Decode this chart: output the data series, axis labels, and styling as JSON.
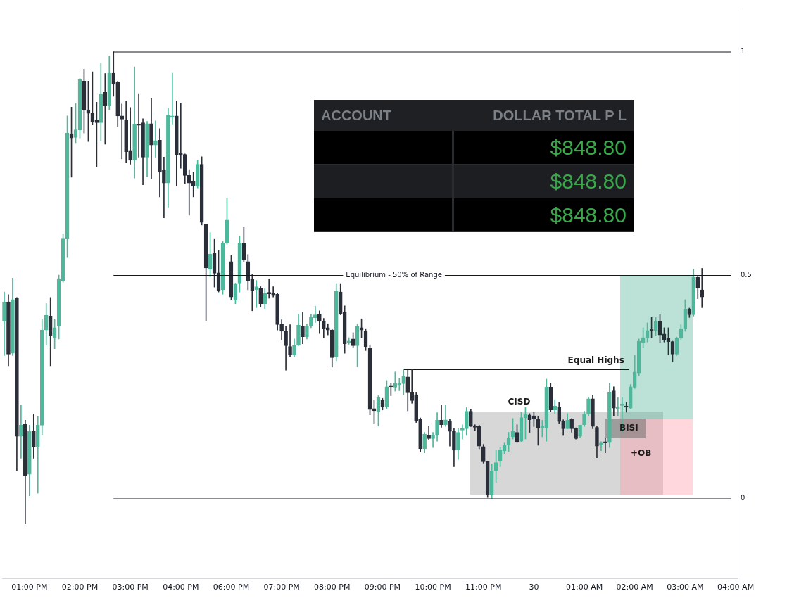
{
  "chart_data": {
    "type": "candlestick",
    "categories": [
      null,
      null,
      null,
      null,
      null,
      null,
      "01:00 PM",
      null,
      null,
      null,
      null,
      null,
      null,
      null,
      null,
      null,
      null,
      null,
      "02:00 PM",
      null,
      null,
      null,
      null,
      null,
      null,
      null,
      null,
      null,
      null,
      null,
      "03:00 PM",
      null,
      null,
      null,
      null,
      null,
      null,
      null,
      null,
      null,
      null,
      null,
      "04:00 PM",
      null,
      null,
      null,
      null,
      null,
      null,
      null,
      null,
      null,
      null,
      null,
      "06:00 PM",
      null,
      null,
      null,
      null,
      null,
      null,
      null,
      null,
      null,
      null,
      null,
      "07:00 PM",
      null,
      null,
      null,
      null,
      null,
      null,
      null,
      null,
      null,
      null,
      null,
      "08:00 PM",
      null,
      null,
      null,
      null,
      null,
      null,
      null,
      null,
      null,
      null,
      null,
      "09:00 PM",
      null,
      null,
      null,
      null,
      null,
      null,
      null,
      null,
      null,
      null,
      null,
      "10:00 PM",
      null,
      null,
      null,
      null,
      null,
      null,
      null,
      null,
      null,
      null,
      null,
      "11:00 PM",
      null,
      null,
      null,
      null,
      null,
      null,
      null,
      null,
      null,
      null,
      null,
      "30",
      null,
      null,
      null,
      null,
      null,
      null,
      null,
      null,
      null,
      null,
      null,
      "01:00 AM",
      null,
      null,
      null,
      null,
      null,
      null,
      null,
      null,
      null,
      null,
      null,
      "02:00 AM",
      null,
      null,
      null,
      null,
      null,
      null,
      null,
      null,
      null,
      null,
      null,
      "03:00 AM",
      null,
      null,
      null,
      null,
      null,
      null,
      null,
      null,
      null,
      null,
      null,
      "04:00 AM"
    ],
    "ohlc": [
      [
        0.396,
        0.462,
        0.32,
        0.44
      ],
      [
        0.44,
        0.456,
        0.297,
        0.323
      ],
      [
        0.325,
        0.493,
        0.32,
        0.445
      ],
      [
        0.448,
        0.45,
        0.062,
        0.139
      ],
      [
        0.139,
        0.209,
        0.09,
        0.164
      ],
      [
        0.167,
        0.175,
        -0.057,
        0.051
      ],
      [
        0.054,
        0.164,
        0.006,
        0.15
      ],
      [
        0.15,
        0.189,
        0.09,
        0.116
      ],
      [
        0.116,
        0.184,
        0.012,
        0.164
      ],
      [
        0.164,
        0.402,
        0.142,
        0.377
      ],
      [
        0.377,
        0.436,
        0.343,
        0.41
      ],
      [
        0.408,
        0.45,
        0.297,
        0.365
      ],
      [
        0.359,
        0.402,
        0.335,
        0.382
      ],
      [
        0.385,
        0.5,
        0.357,
        0.49
      ],
      [
        0.488,
        0.592,
        0.484,
        0.581
      ],
      [
        0.581,
        0.856,
        0.539,
        0.818
      ],
      [
        0.815,
        0.876,
        0.719,
        0.807
      ],
      [
        0.808,
        0.884,
        0.796,
        0.825
      ],
      [
        0.825,
        0.94,
        0.807,
        0.938
      ],
      [
        0.934,
        0.961,
        0.818,
        0.87
      ],
      [
        0.87,
        0.934,
        0.799,
        0.862
      ],
      [
        0.862,
        0.955,
        0.836,
        0.842
      ],
      [
        0.847,
        0.887,
        0.743,
        0.841
      ],
      [
        0.841,
        0.974,
        0.8,
        0.906
      ],
      [
        0.909,
        0.951,
        0.793,
        0.879
      ],
      [
        0.879,
        0.99,
        0.87,
        0.952
      ],
      [
        0.952,
        1.0,
        0.9,
        0.927
      ],
      [
        0.932,
        0.934,
        0.832,
        0.856
      ],
      [
        0.856,
        0.883,
        0.76,
        0.849
      ],
      [
        0.847,
        0.889,
        0.751,
        0.776
      ],
      [
        0.779,
        0.875,
        0.748,
        0.757
      ],
      [
        0.757,
        0.966,
        0.717,
        0.838
      ],
      [
        0.838,
        0.906,
        0.764,
        0.835
      ],
      [
        0.841,
        0.85,
        0.702,
        0.764
      ],
      [
        0.764,
        0.844,
        0.72,
        0.839
      ],
      [
        0.839,
        0.895,
        0.716,
        0.791
      ],
      [
        0.791,
        0.845,
        0.764,
        0.801
      ],
      [
        0.802,
        0.828,
        0.675,
        0.73
      ],
      [
        0.734,
        0.764,
        0.628,
        0.706
      ],
      [
        0.706,
        0.873,
        0.652,
        0.858
      ],
      [
        0.853,
        0.952,
        0.838,
        0.856
      ],
      [
        0.856,
        0.89,
        0.7,
        0.77
      ],
      [
        0.773,
        0.884,
        0.739,
        0.768
      ],
      [
        0.77,
        0.771,
        0.705,
        0.723
      ],
      [
        0.723,
        0.736,
        0.634,
        0.706
      ],
      [
        0.709,
        0.731,
        0.675,
        0.699
      ],
      [
        0.699,
        0.756,
        0.695,
        0.748
      ],
      [
        0.748,
        0.765,
        0.612,
        0.618
      ],
      [
        0.614,
        0.614,
        0.397,
        0.516
      ],
      [
        0.513,
        0.595,
        0.496,
        0.547
      ],
      [
        0.549,
        0.58,
        0.473,
        0.504
      ],
      [
        0.505,
        0.555,
        0.462,
        0.464
      ],
      [
        0.467,
        0.575,
        0.457,
        0.572
      ],
      [
        0.573,
        0.671,
        0.569,
        0.623
      ],
      [
        0.53,
        0.544,
        0.444,
        0.451
      ],
      [
        0.444,
        0.482,
        0.436,
        0.479
      ],
      [
        0.482,
        0.587,
        0.462,
        0.572
      ],
      [
        0.572,
        0.607,
        0.529,
        0.535
      ],
      [
        0.53,
        0.546,
        0.467,
        0.488
      ],
      [
        0.49,
        0.502,
        0.42,
        0.465
      ],
      [
        0.467,
        0.488,
        0.427,
        0.474
      ],
      [
        0.471,
        0.474,
        0.428,
        0.436
      ],
      [
        0.436,
        0.471,
        0.425,
        0.459
      ],
      [
        0.461,
        0.491,
        0.448,
        0.458
      ],
      [
        0.459,
        0.474,
        0.451,
        0.454
      ],
      [
        0.457,
        0.459,
        0.377,
        0.389
      ],
      [
        0.391,
        0.4,
        0.355,
        0.374
      ],
      [
        0.374,
        0.385,
        0.287,
        0.342
      ],
      [
        0.34,
        0.389,
        0.317,
        0.321
      ],
      [
        0.321,
        0.357,
        0.317,
        0.342
      ],
      [
        0.343,
        0.413,
        0.342,
        0.388
      ],
      [
        0.386,
        0.417,
        0.346,
        0.362
      ],
      [
        0.362,
        0.39,
        0.357,
        0.386
      ],
      [
        0.385,
        0.413,
        0.382,
        0.406
      ],
      [
        0.404,
        0.43,
        0.394,
        0.411
      ],
      [
        0.413,
        0.42,
        0.369,
        0.396
      ],
      [
        0.396,
        0.403,
        0.36,
        0.38
      ],
      [
        0.382,
        0.391,
        0.366,
        0.377
      ],
      [
        0.377,
        0.38,
        0.294,
        0.315
      ],
      [
        0.318,
        0.481,
        0.308,
        0.465
      ],
      [
        0.462,
        0.481,
        0.411,
        0.414
      ],
      [
        0.416,
        0.431,
        0.325,
        0.346
      ],
      [
        0.349,
        0.36,
        0.345,
        0.352
      ],
      [
        0.357,
        0.371,
        0.337,
        0.342
      ],
      [
        0.342,
        0.39,
        0.295,
        0.385
      ],
      [
        0.382,
        0.402,
        0.359,
        0.377
      ],
      [
        0.374,
        0.38,
        0.331,
        0.34
      ],
      [
        0.337,
        0.343,
        0.187,
        0.199
      ],
      [
        0.201,
        0.219,
        0.167,
        0.196
      ],
      [
        0.193,
        0.23,
        0.162,
        0.226
      ],
      [
        0.219,
        0.224,
        0.198,
        0.204
      ],
      [
        0.204,
        0.264,
        0.201,
        0.25
      ],
      [
        0.251,
        0.257,
        0.23,
        0.25
      ],
      [
        0.249,
        0.283,
        0.24,
        0.257
      ],
      [
        0.255,
        0.269,
        0.241,
        0.258
      ],
      [
        0.257,
        0.289,
        0.232,
        0.274
      ],
      [
        0.272,
        0.289,
        0.196,
        0.238
      ],
      [
        0.238,
        0.289,
        0.213,
        0.219
      ],
      [
        0.232,
        0.238,
        0.17,
        0.173
      ],
      [
        0.178,
        0.18,
        0.104,
        0.111
      ],
      [
        0.111,
        0.148,
        0.102,
        0.144
      ],
      [
        0.142,
        0.161,
        0.131,
        0.134
      ],
      [
        0.134,
        0.148,
        0.114,
        0.142
      ],
      [
        0.142,
        0.192,
        0.128,
        0.175
      ],
      [
        0.175,
        0.209,
        0.159,
        0.165
      ],
      [
        0.165,
        0.209,
        0.161,
        0.176
      ],
      [
        0.173,
        0.178,
        0.117,
        0.15
      ],
      [
        0.151,
        0.156,
        0.071,
        0.108
      ],
      [
        0.108,
        0.156,
        0.087,
        0.148
      ],
      [
        0.153,
        0.165,
        0.133,
        0.156
      ],
      [
        0.156,
        0.204,
        0.141,
        0.195
      ],
      [
        0.195,
        0.199,
        0.161,
        0.161
      ],
      [
        0.161,
        0.165,
        0.151,
        0.159
      ],
      [
        0.161,
        0.164,
        0.111,
        0.117
      ],
      [
        0.116,
        0.121,
        0.079,
        0.082
      ],
      [
        0.083,
        0.083,
        0.002,
        0.009
      ],
      [
        0.009,
        0.077,
        0.0,
        0.062
      ],
      [
        0.062,
        0.108,
        0.036,
        0.08
      ],
      [
        0.083,
        0.114,
        0.071,
        0.108
      ],
      [
        0.107,
        0.124,
        0.1,
        0.119
      ],
      [
        0.119,
        0.148,
        0.105,
        0.134
      ],
      [
        0.138,
        0.179,
        0.133,
        0.15
      ],
      [
        0.148,
        0.165,
        0.125,
        0.127
      ],
      [
        0.128,
        0.193,
        0.127,
        0.181
      ],
      [
        0.181,
        0.204,
        0.133,
        0.189
      ],
      [
        0.187,
        0.19,
        0.148,
        0.176
      ],
      [
        0.185,
        0.193,
        0.161,
        0.179
      ],
      [
        0.178,
        0.184,
        0.119,
        0.158
      ],
      [
        0.158,
        0.175,
        0.138,
        0.16
      ],
      [
        0.158,
        0.267,
        0.128,
        0.249
      ],
      [
        0.249,
        0.257,
        0.195,
        0.198
      ],
      [
        0.198,
        0.221,
        0.19,
        0.207
      ],
      [
        0.204,
        0.215,
        0.168,
        0.172
      ],
      [
        0.172,
        0.176,
        0.141,
        0.156
      ],
      [
        0.156,
        0.19,
        0.156,
        0.175
      ],
      [
        0.178,
        0.179,
        0.148,
        0.156
      ],
      [
        0.156,
        0.158,
        0.133,
        0.134
      ],
      [
        0.139,
        0.164,
        0.136,
        0.164
      ],
      [
        0.165,
        0.195,
        0.161,
        0.189
      ],
      [
        0.189,
        0.226,
        0.184,
        0.223
      ],
      [
        0.223,
        0.23,
        0.156,
        0.161
      ],
      [
        0.159,
        0.161,
        0.091,
        0.117
      ],
      [
        0.12,
        0.127,
        0.107,
        0.124
      ],
      [
        0.127,
        0.134,
        0.102,
        0.124
      ],
      [
        0.125,
        0.258,
        0.114,
        0.238
      ],
      [
        0.241,
        0.25,
        0.184,
        0.202
      ],
      [
        0.201,
        0.226,
        0.184,
        0.204
      ],
      [
        0.208,
        0.226,
        0.148,
        0.21
      ],
      [
        0.207,
        0.215,
        0.193,
        0.204
      ],
      [
        0.202,
        0.255,
        0.201,
        0.25
      ],
      [
        0.249,
        0.32,
        0.246,
        0.283
      ],
      [
        0.281,
        0.357,
        0.275,
        0.352
      ],
      [
        0.348,
        0.382,
        0.337,
        0.36
      ],
      [
        0.359,
        0.393,
        0.35,
        0.376
      ],
      [
        0.377,
        0.405,
        0.36,
        0.376
      ],
      [
        0.376,
        0.405,
        0.365,
        0.396
      ],
      [
        0.397,
        0.413,
        0.349,
        0.366
      ],
      [
        0.368,
        0.382,
        0.35,
        0.354
      ],
      [
        0.359,
        0.382,
        0.322,
        0.351
      ],
      [
        0.351,
        0.352,
        0.306,
        0.323
      ],
      [
        0.323,
        0.361,
        0.32,
        0.359
      ],
      [
        0.359,
        0.389,
        0.355,
        0.38
      ],
      [
        0.38,
        0.445,
        0.374,
        0.424
      ],
      [
        0.424,
        0.426,
        0.405,
        0.411
      ],
      [
        0.411,
        0.513,
        0.408,
        0.495
      ],
      [
        0.495,
        0.499,
        0.447,
        0.471
      ],
      [
        0.467,
        0.515,
        0.427,
        0.451
      ],
      null,
      null,
      null,
      null,
      null,
      null,
      null,
      null
    ],
    "colors": [
      "#4db89b",
      "#2a2e39",
      "#4db89b",
      "#2a2e39",
      "#4db89b",
      "#2a2e39",
      "#4db89b",
      "#2a2e39",
      "#4db89b",
      "#4db89b",
      "#4db89b",
      "#2a2e39",
      "#4db89b",
      "#4db89b",
      "#4db89b",
      "#4db89b",
      "#2a2e39",
      "#4db89b",
      "#4db89b",
      "#2a2e39",
      "#2a2e39",
      "#2a2e39",
      "#2a2e39",
      "#4db89b",
      "#2a2e39",
      "#4db89b",
      "#2a2e39",
      "#2a2e39",
      "#2a2e39",
      "#2a2e39",
      "#2a2e39",
      "#4db89b",
      "#2a2e39",
      "#2a2e39",
      "#4db89b",
      "#2a2e39",
      "#4db89b",
      "#2a2e39",
      "#2a2e39",
      "#4db89b",
      "#4db89b",
      "#2a2e39",
      "#2a2e39",
      "#2a2e39",
      "#2a2e39",
      "#2a2e39",
      "#4db89b",
      "#2a2e39",
      "#2a2e39",
      "#4db89b",
      "#2a2e39",
      "#2a2e39",
      "#4db89b",
      "#4db89b",
      "#2a2e39",
      "#4db89b",
      "#4db89b",
      "#2a2e39",
      "#2a2e39",
      "#2a2e39",
      "#4db89b",
      "#2a2e39",
      "#4db89b",
      "#2a2e39",
      "#2a2e39",
      "#2a2e39",
      "#2a2e39",
      "#2a2e39",
      "#2a2e39",
      "#4db89b",
      "#4db89b",
      "#2a2e39",
      "#4db89b",
      "#4db89b",
      "#4db89b",
      "#2a2e39",
      "#2a2e39",
      "#2a2e39",
      "#2a2e39",
      "#4db89b",
      "#2a2e39",
      "#2a2e39",
      "#4db89b",
      "#2a2e39",
      "#4db89b",
      "#2a2e39",
      "#2a2e39",
      "#2a2e39",
      "#2a2e39",
      "#4db89b",
      "#2a2e39",
      "#4db89b",
      "#2a2e39",
      "#4db89b",
      "#4db89b",
      "#4db89b",
      "#2a2e39",
      "#2a2e39",
      "#2a2e39",
      "#2a2e39",
      "#4db89b",
      "#2a2e39",
      "#4db89b",
      "#4db89b",
      "#2a2e39",
      "#4db89b",
      "#2a2e39",
      "#2a2e39",
      "#4db89b",
      "#4db89b",
      "#4db89b",
      "#2a2e39",
      "#2a2e39",
      "#2a2e39",
      "#2a2e39",
      "#2a2e39",
      "#4db89b",
      "#4db89b",
      "#4db89b",
      "#4db89b",
      "#4db89b",
      "#4db89b",
      "#2a2e39",
      "#4db89b",
      "#4db89b",
      "#2a2e39",
      "#2a2e39",
      "#2a2e39",
      "#4db89b",
      "#4db89b",
      "#2a2e39",
      "#4db89b",
      "#2a2e39",
      "#2a2e39",
      "#4db89b",
      "#2a2e39",
      "#2a2e39",
      "#4db89b",
      "#4db89b",
      "#4db89b",
      "#2a2e39",
      "#2a2e39",
      "#4db89b",
      "#2a2e39",
      "#4db89b",
      "#2a2e39",
      "#4db89b",
      "#4db89b",
      "#2a2e39",
      "#4db89b",
      "#4db89b",
      "#4db89b",
      "#4db89b",
      "#4db89b",
      "#2a2e39",
      "#4db89b",
      "#2a2e39",
      "#2a2e39",
      "#2a2e39",
      "#2a2e39",
      "#4db89b",
      "#4db89b",
      "#4db89b",
      "#2a2e39",
      "#4db89b",
      "#2a2e39",
      "#2a2e39",
      null,
      null,
      null,
      null,
      null,
      null,
      null,
      null
    ],
    "ylim": [
      -0.18,
      1.1
    ],
    "yticks": [
      0,
      0.5,
      1
    ],
    "grid": false,
    "legend": false,
    "ref_lines": [
      {
        "axis": "y",
        "value": 1,
        "color": "#131722"
      },
      {
        "axis": "y",
        "value": 0.5,
        "label": "Equilibrium - 50% of Range",
        "color": "#131722"
      },
      {
        "axis": "y",
        "value": 0,
        "color": "#131722"
      }
    ],
    "annotations": [
      "ACCOUNT",
      "DOLLAR TOTAL P L",
      "$848.80",
      "$848.80",
      "$848.80",
      "Equal Highs",
      "CISD",
      "BISI",
      "+OB"
    ]
  }
}
